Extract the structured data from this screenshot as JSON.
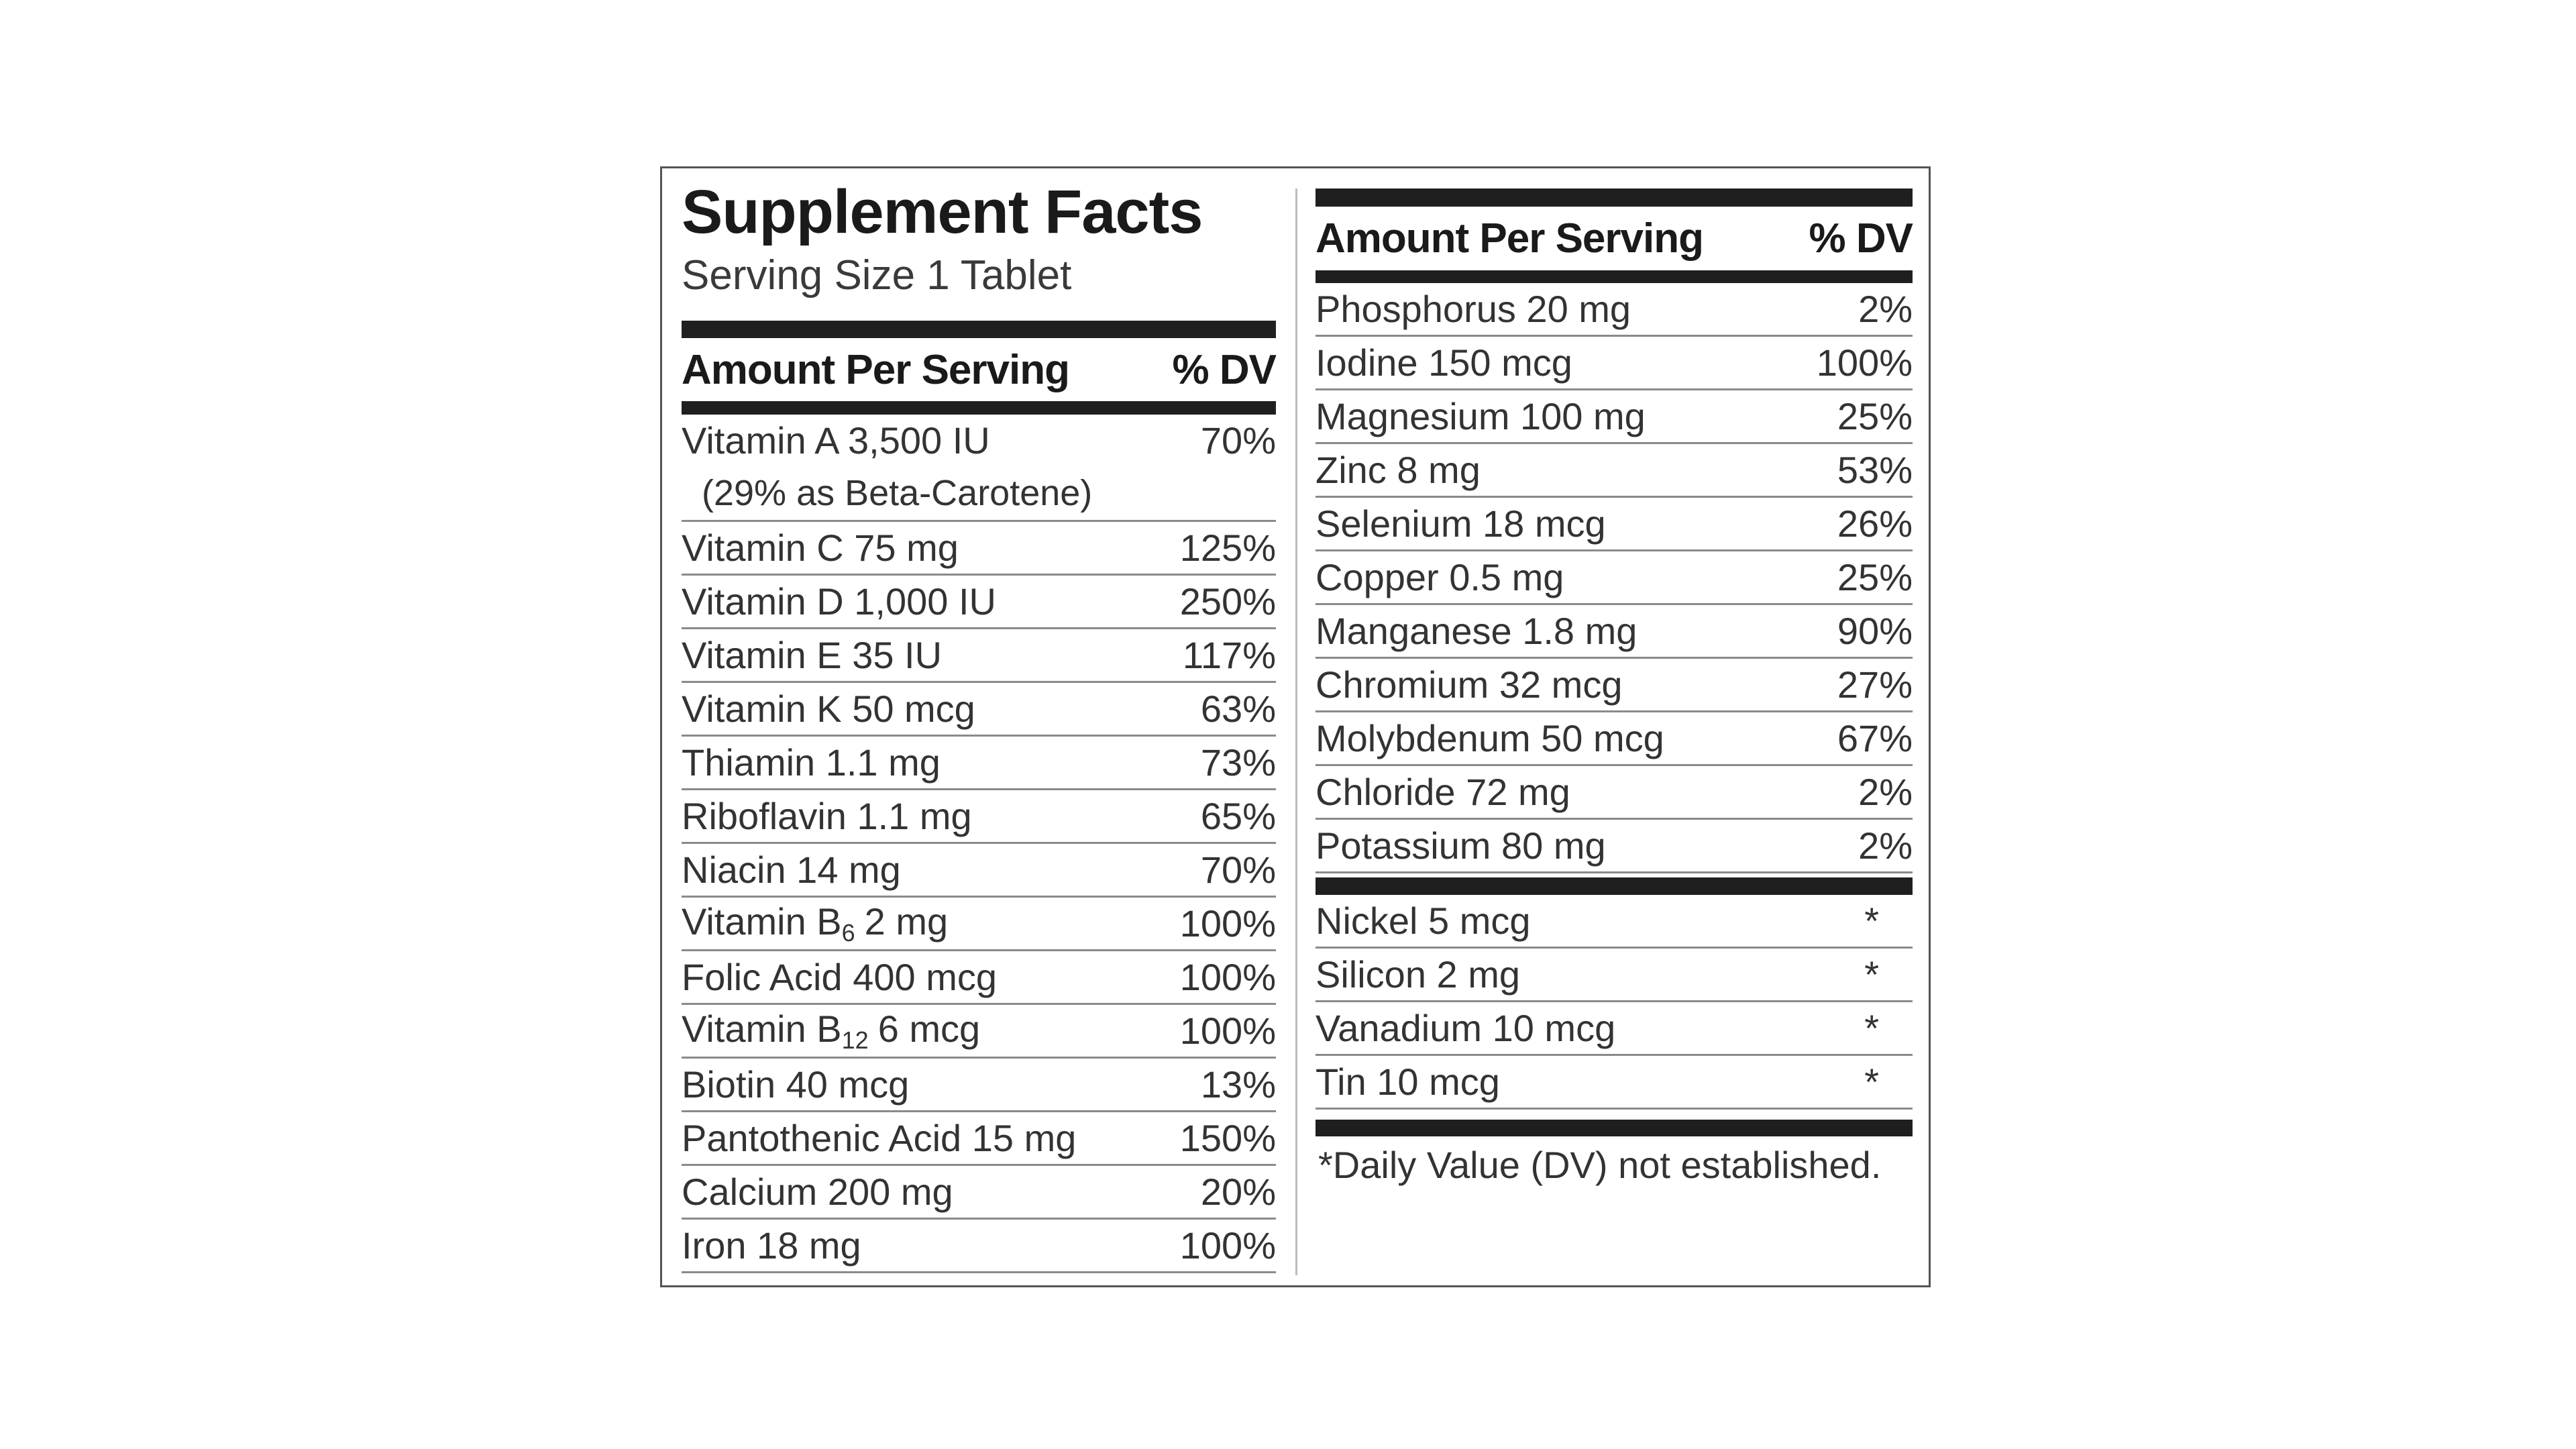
{
  "title": "Supplement Facts",
  "serving_size": "Serving Size 1 Tablet",
  "left": {
    "header": {
      "amount": "Amount Per Serving",
      "dv": "% DV"
    },
    "rows": [
      {
        "name": "Vitamin A 3,500 IU",
        "note": "(29% as Beta-Carotene)",
        "dv": "70%"
      },
      {
        "name": "Vitamin C 75 mg",
        "dv": "125%"
      },
      {
        "name": "Vitamin D 1,000 IU",
        "dv": "250%"
      },
      {
        "name": "Vitamin E 35 IU",
        "dv": "117%"
      },
      {
        "name": "Vitamin K 50 mcg",
        "dv": "63%"
      },
      {
        "name": "Thiamin 1.1 mg",
        "dv": "73%"
      },
      {
        "name": "Riboflavin 1.1 mg",
        "dv": "65%"
      },
      {
        "name": "Niacin 14 mg",
        "dv": "70%"
      },
      {
        "name": [
          "Vitamin B",
          "6",
          "2 mg"
        ],
        "dv": "100%"
      },
      {
        "name": "Folic Acid 400 mcg",
        "dv": "100%"
      },
      {
        "name": [
          "Vitamin B",
          "12",
          "6 mcg"
        ],
        "dv": "100%"
      },
      {
        "name": "Biotin 40 mcg",
        "dv": "13%"
      },
      {
        "name": "Pantothenic Acid 15 mg",
        "dv": "150%"
      },
      {
        "name": "Calcium 200 mg",
        "dv": "20%"
      },
      {
        "name": "Iron 18 mg",
        "dv": "100%"
      }
    ]
  },
  "right": {
    "header": {
      "amount": "Amount Per Serving",
      "dv": "% DV"
    },
    "rows": [
      {
        "name": "Phosphorus 20 mg",
        "dv": "2%"
      },
      {
        "name": "Iodine 150 mcg",
        "dv": "100%"
      },
      {
        "name": "Magnesium 100 mg",
        "dv": "25%"
      },
      {
        "name": "Zinc 8 mg",
        "dv": "53%"
      },
      {
        "name": "Selenium 18 mcg",
        "dv": "26%"
      },
      {
        "name": "Copper 0.5 mg",
        "dv": "25%"
      },
      {
        "name": "Manganese 1.8 mg",
        "dv": "90%"
      },
      {
        "name": "Chromium 32 mcg",
        "dv": "27%"
      },
      {
        "name": "Molybdenum 50 mcg",
        "dv": "67%"
      },
      {
        "name": "Chloride 72 mg",
        "dv": "2%"
      },
      {
        "name": "Potassium 80 mg",
        "dv": "2%"
      }
    ],
    "unestablished": [
      {
        "name": "Nickel 5 mcg",
        "dv": "*"
      },
      {
        "name": "Silicon 2 mg",
        "dv": "*"
      },
      {
        "name": "Vanadium 10 mcg",
        "dv": "*"
      },
      {
        "name": "Tin 10 mcg",
        "dv": "*"
      }
    ],
    "footnote": "*Daily Value (DV) not established."
  }
}
